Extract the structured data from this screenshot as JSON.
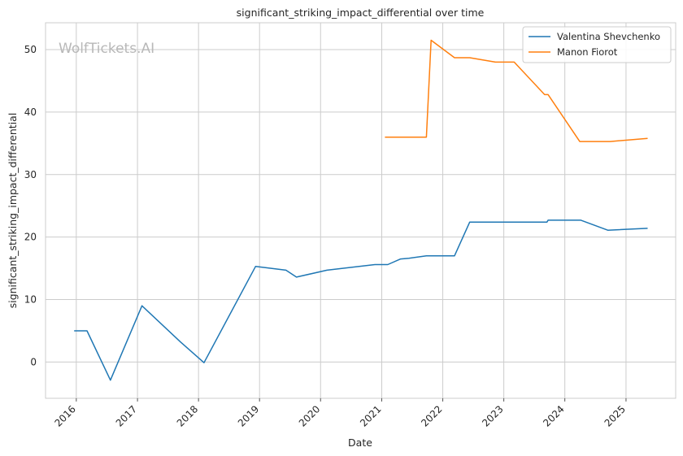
{
  "chart_data": {
    "type": "line",
    "title": "significant_striking_impact_differential over time",
    "xlabel": "Date",
    "ylabel": "significant_striking_impact_differential",
    "watermark": "WolfTickets.AI",
    "x_ticks": [
      "2016",
      "2017",
      "2018",
      "2019",
      "2020",
      "2021",
      "2022",
      "2023",
      "2024",
      "2025"
    ],
    "y_ticks": [
      0,
      10,
      20,
      30,
      40,
      50
    ],
    "xlim": [
      "2015-07-01",
      "2025-10-25"
    ],
    "ylim": [
      -5.8,
      54.3
    ],
    "grid": true,
    "legend_position": "top-right",
    "series": [
      {
        "name": "Valentina Shevchenko",
        "color": "#1f77b4",
        "points": [
          [
            "2015-12-19",
            5.0
          ],
          [
            "2016-03-05",
            5.0
          ],
          [
            "2016-07-23",
            -2.9
          ],
          [
            "2017-01-28",
            9.0
          ],
          [
            "2017-09-16",
            3.2
          ],
          [
            "2018-02-03",
            -0.1
          ],
          [
            "2018-12-08",
            15.3
          ],
          [
            "2019-06-08",
            14.7
          ],
          [
            "2019-08-10",
            13.6
          ],
          [
            "2020-02-08",
            14.7
          ],
          [
            "2020-11-21",
            15.6
          ],
          [
            "2021-02-06",
            15.6
          ],
          [
            "2021-04-24",
            16.5
          ],
          [
            "2021-06-12",
            16.6
          ],
          [
            "2021-09-25",
            17.0
          ],
          [
            "2022-03-12",
            17.0
          ],
          [
            "2022-06-11",
            22.4
          ],
          [
            "2022-11-12",
            22.4
          ],
          [
            "2023-09-16",
            22.4
          ],
          [
            "2023-09-23",
            22.7
          ],
          [
            "2024-04-06",
            22.7
          ],
          [
            "2024-09-14",
            21.1
          ],
          [
            "2025-05-10",
            21.4
          ]
        ]
      },
      {
        "name": "Manon Fiorot",
        "color": "#ff7f0e",
        "points": [
          [
            "2021-01-20",
            36.0
          ],
          [
            "2021-09-25",
            36.0
          ],
          [
            "2021-10-23",
            51.5
          ],
          [
            "2022-03-12",
            48.7
          ],
          [
            "2022-06-11",
            48.7
          ],
          [
            "2022-11-12",
            48.0
          ],
          [
            "2023-03-04",
            48.0
          ],
          [
            "2023-09-02",
            42.8
          ],
          [
            "2023-09-23",
            42.8
          ],
          [
            "2024-03-30",
            35.3
          ],
          [
            "2024-09-28",
            35.3
          ],
          [
            "2025-05-10",
            35.8
          ]
        ]
      }
    ]
  }
}
